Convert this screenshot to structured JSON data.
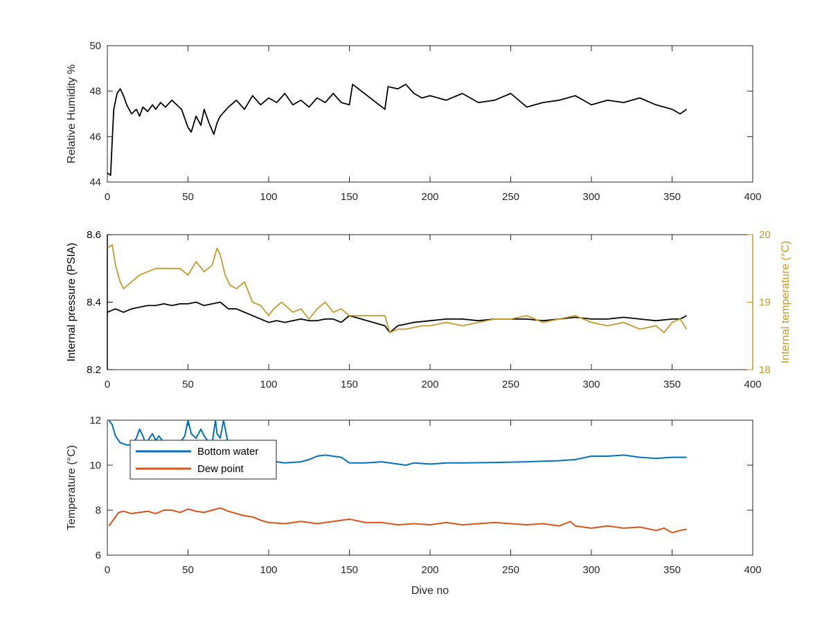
{
  "figure": {
    "xlabel": "Dive no"
  },
  "colors": {
    "black": "#000000",
    "axis": "#262626",
    "gold": "#C49A2A",
    "blue": "#0072BD",
    "orange": "#D95319"
  },
  "chart_data": [
    {
      "type": "line",
      "title": "",
      "xlabel": "",
      "ylabel": "Relative Humidity %",
      "xlim": [
        0,
        400
      ],
      "ylim": [
        44,
        50
      ],
      "xticks": [
        0,
        50,
        100,
        150,
        200,
        250,
        300,
        350,
        400
      ],
      "yticks": [
        44,
        46,
        48,
        50
      ],
      "grid": false,
      "series": [
        {
          "color": "#000000",
          "x": [
            0,
            2,
            3,
            4,
            6,
            8,
            10,
            12,
            15,
            18,
            20,
            22,
            25,
            28,
            30,
            33,
            36,
            40,
            43,
            46,
            50,
            52,
            55,
            58,
            60,
            63,
            66,
            68,
            70,
            75,
            80,
            85,
            90,
            95,
            100,
            105,
            110,
            115,
            120,
            125,
            130,
            135,
            140,
            145,
            150,
            152,
            172,
            174,
            180,
            185,
            190,
            195,
            200,
            210,
            220,
            230,
            240,
            250,
            260,
            270,
            280,
            290,
            300,
            310,
            320,
            330,
            340,
            350,
            355,
            359
          ],
          "y": [
            44.4,
            44.3,
            45.8,
            47.2,
            47.9,
            48.1,
            47.8,
            47.4,
            47.0,
            47.2,
            46.9,
            47.3,
            47.1,
            47.4,
            47.2,
            47.5,
            47.3,
            47.6,
            47.4,
            47.2,
            46.4,
            46.2,
            46.9,
            46.5,
            47.2,
            46.6,
            46.1,
            46.6,
            46.9,
            47.3,
            47.6,
            47.2,
            47.8,
            47.4,
            47.7,
            47.5,
            47.9,
            47.4,
            47.6,
            47.3,
            47.7,
            47.5,
            47.9,
            47.5,
            47.4,
            48.3,
            47.2,
            48.2,
            48.1,
            48.3,
            47.9,
            47.7,
            47.8,
            47.6,
            47.9,
            47.5,
            47.6,
            47.9,
            47.3,
            47.5,
            47.6,
            47.8,
            47.4,
            47.6,
            47.5,
            47.7,
            47.4,
            47.2,
            47.0,
            47.2
          ]
        }
      ]
    },
    {
      "type": "line",
      "title": "",
      "xlabel": "",
      "ylabel": "Internal pressure (PSIA)",
      "y2label": "Internal temperature (°C)",
      "xlim": [
        0,
        400
      ],
      "ylim": [
        8.2,
        8.6
      ],
      "y2lim": [
        18,
        20
      ],
      "xticks": [
        0,
        50,
        100,
        150,
        200,
        250,
        300,
        350,
        400
      ],
      "yticks": [
        8.2,
        8.4,
        8.6
      ],
      "y2ticks": [
        18,
        19,
        20
      ],
      "grid": false,
      "series": [
        {
          "axis": "left",
          "color": "#000000",
          "x": [
            0,
            5,
            10,
            15,
            20,
            25,
            30,
            35,
            40,
            45,
            50,
            55,
            60,
            65,
            70,
            75,
            80,
            85,
            90,
            95,
            100,
            105,
            110,
            115,
            120,
            125,
            130,
            135,
            140,
            145,
            150,
            172,
            175,
            180,
            190,
            200,
            210,
            220,
            230,
            240,
            250,
            260,
            270,
            280,
            290,
            300,
            310,
            320,
            330,
            340,
            350,
            355,
            359
          ],
          "y": [
            8.37,
            8.38,
            8.37,
            8.38,
            8.385,
            8.39,
            8.39,
            8.395,
            8.39,
            8.395,
            8.395,
            8.4,
            8.39,
            8.395,
            8.4,
            8.38,
            8.38,
            8.37,
            8.36,
            8.35,
            8.34,
            8.345,
            8.34,
            8.345,
            8.35,
            8.345,
            8.345,
            8.35,
            8.35,
            8.34,
            8.36,
            8.33,
            8.31,
            8.33,
            8.34,
            8.345,
            8.35,
            8.35,
            8.345,
            8.35,
            8.35,
            8.35,
            8.345,
            8.35,
            8.355,
            8.35,
            8.35,
            8.355,
            8.35,
            8.345,
            8.35,
            8.35,
            8.36
          ]
        },
        {
          "axis": "right",
          "color": "#C49A2A",
          "x": [
            0,
            3,
            5,
            8,
            10,
            15,
            20,
            25,
            30,
            35,
            40,
            45,
            50,
            55,
            60,
            65,
            68,
            70,
            73,
            76,
            80,
            85,
            90,
            95,
            100,
            103,
            108,
            115,
            120,
            125,
            130,
            135,
            140,
            145,
            150,
            172,
            175,
            180,
            185,
            195,
            200,
            210,
            220,
            230,
            240,
            250,
            260,
            270,
            280,
            290,
            300,
            310,
            320,
            330,
            340,
            345,
            350,
            355,
            359
          ],
          "y": [
            19.8,
            19.85,
            19.55,
            19.3,
            19.2,
            19.3,
            19.4,
            19.45,
            19.5,
            19.5,
            19.5,
            19.5,
            19.4,
            19.6,
            19.45,
            19.55,
            19.8,
            19.7,
            19.4,
            19.25,
            19.2,
            19.3,
            19.0,
            18.95,
            18.8,
            18.9,
            19.0,
            18.85,
            18.9,
            18.75,
            18.9,
            19.0,
            18.85,
            18.9,
            18.8,
            18.8,
            18.55,
            18.6,
            18.6,
            18.65,
            18.65,
            18.7,
            18.65,
            18.7,
            18.75,
            18.75,
            18.8,
            18.7,
            18.75,
            18.8,
            18.7,
            18.65,
            18.7,
            18.6,
            18.65,
            18.55,
            18.7,
            18.75,
            18.6
          ]
        }
      ]
    },
    {
      "type": "line",
      "title": "",
      "xlabel": "Dive no",
      "ylabel": "Temperature (°C)",
      "xlim": [
        0,
        400
      ],
      "ylim": [
        6,
        12
      ],
      "xticks": [
        0,
        50,
        100,
        150,
        200,
        250,
        300,
        350,
        400
      ],
      "yticks": [
        6,
        8,
        10,
        12
      ],
      "grid": false,
      "legend_position": "upper-left",
      "series": [
        {
          "name": "Bottom water",
          "color": "#0072BD",
          "x": [
            1,
            3,
            5,
            8,
            12,
            15,
            18,
            20,
            22,
            24,
            26,
            28,
            30,
            32,
            35,
            38,
            42,
            45,
            48,
            50,
            52,
            55,
            58,
            60,
            62,
            65,
            67,
            68,
            70,
            72,
            75,
            80,
            90,
            100,
            110,
            120,
            125,
            130,
            135,
            140,
            145,
            150,
            160,
            170,
            180,
            185,
            190,
            200,
            210,
            220,
            240,
            260,
            280,
            290,
            300,
            310,
            320,
            330,
            340,
            350,
            359
          ],
          "y": [
            12.0,
            11.8,
            11.3,
            11.0,
            10.9,
            10.9,
            11.2,
            11.6,
            11.3,
            10.9,
            11.2,
            11.4,
            11.1,
            11.3,
            11.0,
            10.9,
            10.9,
            11.0,
            11.3,
            12.0,
            11.4,
            11.2,
            11.6,
            11.3,
            11.1,
            11.0,
            12.0,
            11.4,
            11.2,
            12.0,
            10.9,
            10.7,
            10.3,
            10.2,
            10.1,
            10.15,
            10.25,
            10.4,
            10.45,
            10.4,
            10.35,
            10.1,
            10.1,
            10.15,
            10.05,
            10.0,
            10.1,
            10.05,
            10.1,
            10.1,
            10.12,
            10.15,
            10.2,
            10.25,
            10.4,
            10.4,
            10.45,
            10.35,
            10.3,
            10.35,
            10.35
          ]
        },
        {
          "name": "Dew point",
          "color": "#D95319",
          "x": [
            1,
            4,
            7,
            10,
            15,
            20,
            25,
            30,
            35,
            40,
            45,
            50,
            55,
            60,
            65,
            70,
            75,
            80,
            85,
            90,
            95,
            100,
            110,
            120,
            130,
            140,
            150,
            160,
            170,
            180,
            190,
            200,
            210,
            220,
            230,
            240,
            250,
            260,
            270,
            280,
            287,
            290,
            300,
            310,
            320,
            330,
            340,
            345,
            350,
            355,
            359
          ],
          "y": [
            7.3,
            7.6,
            7.9,
            7.95,
            7.85,
            7.9,
            7.95,
            7.85,
            8.0,
            8.0,
            7.9,
            8.05,
            7.95,
            7.9,
            8.0,
            8.1,
            7.95,
            7.85,
            7.75,
            7.7,
            7.55,
            7.45,
            7.4,
            7.5,
            7.4,
            7.5,
            7.6,
            7.45,
            7.45,
            7.35,
            7.4,
            7.35,
            7.45,
            7.35,
            7.4,
            7.45,
            7.4,
            7.35,
            7.4,
            7.3,
            7.5,
            7.3,
            7.2,
            7.3,
            7.2,
            7.25,
            7.1,
            7.2,
            7.0,
            7.1,
            7.15
          ]
        }
      ]
    }
  ]
}
